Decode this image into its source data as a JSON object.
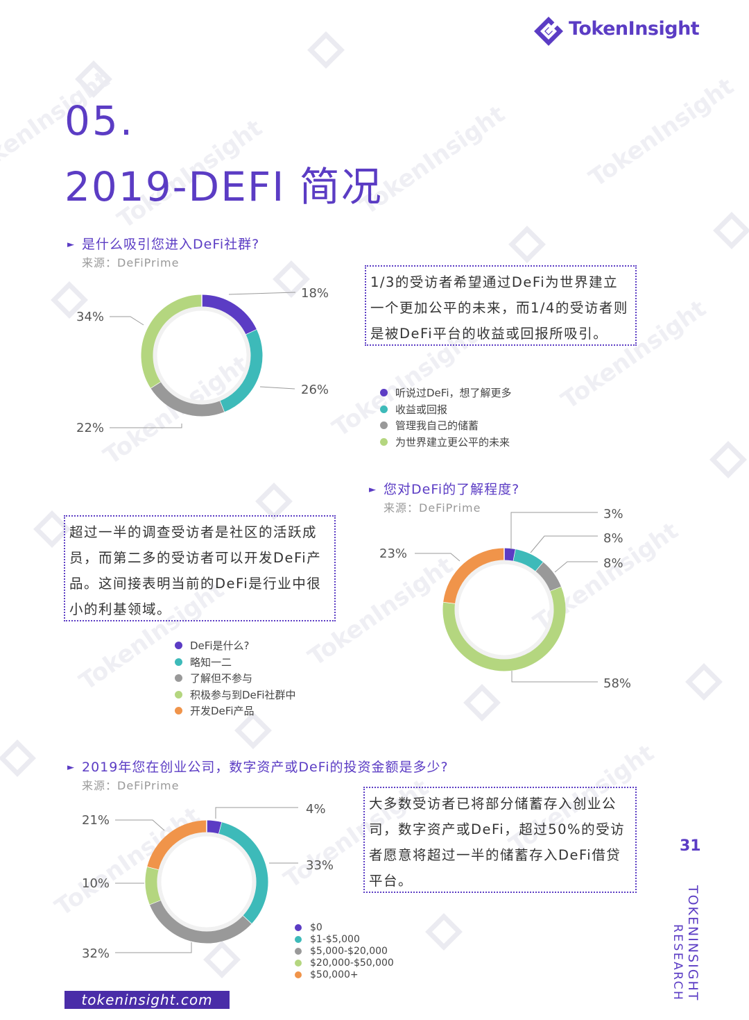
{
  "brand": {
    "name": "TokenInsight"
  },
  "section": {
    "number": "05.",
    "title": "2019-DEFI 简况"
  },
  "chart1": {
    "question": "是什么吸引您进入DeFi社群?",
    "source": "来源：DeFiPrime",
    "note": "1/3的受访者希望通过DeFi为世界建立一个更加公平的未来，而1/4的受访者则是被DeFi平台的收益或回报所吸引。",
    "legend": [
      "听说过DeFi，想了解更多",
      "收益或回报",
      "管理我自己的储蓄",
      "为世界建立更公平的未来"
    ]
  },
  "chart2": {
    "question": "您对DeFi的了解程度?",
    "source": "来源：DeFiPrime",
    "note": "超过一半的调查受访者是社区的活跃成员，而第二多的受访者可以开发DeFi产品。这间接表明当前的DeFi是行业中很小的利基领域。",
    "legend": [
      "DeFi是什么?",
      "略知一二",
      "了解但不参与",
      "积极参与到DeFi社群中",
      "开发DeFi产品"
    ]
  },
  "chart3": {
    "question": "2019年您在创业公司，数字资产或DeFi的投资金额是多少?",
    "source": "来源：DeFiPrime",
    "note": "大多数受访者已将部分储蓄存入创业公司，数字资产或DeFi，超过50%的受访者愿意将超过一半的储蓄存入DeFi借贷平台。",
    "legend": [
      "$0",
      "$1-$5,000",
      "$5,000-$20,000",
      "$20,000-$50,000",
      "$50,000+"
    ]
  },
  "chart_data": [
    {
      "type": "pie",
      "title": "是什么吸引您进入DeFi社群?",
      "categories": [
        "听说过DeFi，想了解更多",
        "收益或回报",
        "管理我自己的储蓄",
        "为世界建立更公平的未来"
      ],
      "values": [
        18,
        26,
        22,
        34
      ],
      "labels": [
        "18%",
        "26%",
        "22%",
        "34%"
      ],
      "colors": [
        "#5b3cc4",
        "#3dbab9",
        "#999999",
        "#b4d67f"
      ]
    },
    {
      "type": "pie",
      "title": "您对DeFi的了解程度?",
      "categories": [
        "DeFi是什么?",
        "略知一二",
        "了解但不参与",
        "积极参与到DeFi社群中",
        "开发DeFi产品"
      ],
      "values": [
        3,
        8,
        8,
        58,
        23
      ],
      "labels": [
        "3%",
        "8%",
        "8%",
        "58%",
        "23%"
      ],
      "colors": [
        "#5b3cc4",
        "#3dbab9",
        "#999999",
        "#b4d67f",
        "#f0944a"
      ]
    },
    {
      "type": "pie",
      "title": "2019年您在创业公司，数字资产或DeFi的投资金额是多少?",
      "categories": [
        "$0",
        "$1-$5,000",
        "$5,000-$20,000",
        "$20,000-$50,000",
        "$50,000+"
      ],
      "values": [
        4,
        33,
        32,
        10,
        21
      ],
      "labels": [
        "4%",
        "33%",
        "32%",
        "10%",
        "21%"
      ],
      "colors": [
        "#5b3cc4",
        "#3dbab9",
        "#999999",
        "#b4d67f",
        "#f0944a"
      ]
    }
  ],
  "footer": {
    "page": "31",
    "side_line1": "TOKENINSIGHT",
    "side_line2": "RESEARCH",
    "url": "tokeninsight.com"
  }
}
